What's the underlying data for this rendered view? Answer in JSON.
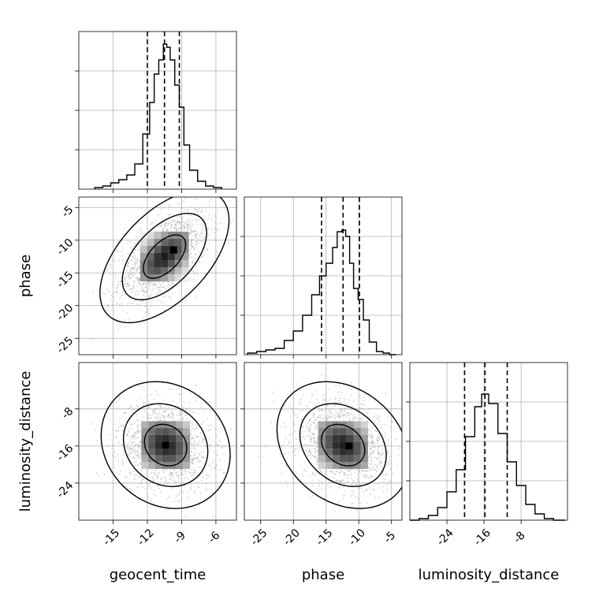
{
  "chart_data": {
    "type": "corner",
    "parameters": [
      "geocent_time",
      "phase",
      "luminosity_distance"
    ],
    "ranges": {
      "geocent_time": [
        -18,
        -4.2
      ],
      "phase": [
        -27.5,
        -3.4
      ],
      "luminosity_distance": [
        -32,
        2
      ]
    },
    "ticks": {
      "geocent_time": [
        -15,
        -12,
        -9,
        -6
      ],
      "phase": [
        -25,
        -20,
        -15,
        -10,
        -5
      ],
      "luminosity_distance": [
        -24,
        -16,
        -8
      ]
    },
    "xlabels": [
      "geocent_time",
      "phase",
      "luminosity_distance"
    ],
    "ylabels": [
      "",
      "phase",
      "luminosity_distance"
    ],
    "grid": true,
    "histograms": [
      {
        "param": "geocent_time",
        "edges": [
          -16.6,
          -15.9,
          -15.2,
          -14.5,
          -13.8,
          -13.1,
          -12.4,
          -11.8,
          -11.4,
          -11.0,
          -10.6,
          -10.3,
          -10.0,
          -9.6,
          -9.2,
          -8.8,
          -8.3,
          -7.6,
          -6.9,
          -6.2,
          -5.5
        ],
        "counts": [
          0.01,
          0.02,
          0.04,
          0.06,
          0.09,
          0.16,
          0.35,
          0.55,
          0.73,
          0.82,
          0.92,
          0.9,
          0.82,
          0.66,
          0.52,
          0.28,
          0.12,
          0.05,
          0.02,
          0.01
        ],
        "quantiles": [
          -12.0,
          -10.5,
          -9.2
        ]
      },
      {
        "param": "phase",
        "edges": [
          -27.0,
          -25.6,
          -24.2,
          -22.8,
          -21.4,
          -20.0,
          -18.6,
          -17.2,
          -16.0,
          -15.0,
          -14.0,
          -13.3,
          -12.6,
          -12.0,
          -11.4,
          -10.8,
          -10.1,
          -9.3,
          -8.4,
          -7.3,
          -6.3,
          -5.3,
          -4.3
        ],
        "counts": [
          0.01,
          0.02,
          0.03,
          0.04,
          0.09,
          0.15,
          0.25,
          0.38,
          0.5,
          0.58,
          0.68,
          0.78,
          0.79,
          0.75,
          0.58,
          0.42,
          0.35,
          0.22,
          0.08,
          0.02,
          0.01,
          0.0
        ],
        "quantiles": [
          -15.7,
          -12.4,
          -9.9
        ]
      },
      {
        "param": "luminosity_distance",
        "edges": [
          -32.0,
          -30.0,
          -28.0,
          -26.0,
          -24.0,
          -22.0,
          -20.0,
          -18.0,
          -16.5,
          -15.0,
          -13.0,
          -11.0,
          -9.0,
          -7.0,
          -5.0,
          -3.0,
          -1.0,
          1.5
        ],
        "counts": [
          0.0,
          0.01,
          0.03,
          0.08,
          0.18,
          0.32,
          0.53,
          0.72,
          0.8,
          0.74,
          0.55,
          0.37,
          0.22,
          0.1,
          0.04,
          0.01,
          0.0
        ],
        "quantiles": [
          -20.2,
          -15.8,
          -11.0
        ]
      }
    ],
    "pairs": [
      {
        "x": "geocent_time",
        "y": "phase",
        "center": [
          -10.5,
          -12.5
        ],
        "sigma": [
          1.9,
          3.4
        ],
        "rho": 0.55,
        "peak": [
          -9.7,
          -11.5
        ]
      },
      {
        "x": "geocent_time",
        "y": "luminosity_distance",
        "center": [
          -10.4,
          -15.8
        ],
        "sigma": [
          1.9,
          4.6
        ],
        "rho": -0.15,
        "peak": [
          -10.4,
          -15.8
        ]
      },
      {
        "x": "phase",
        "y": "luminosity_distance",
        "center": [
          -12.4,
          -15.8
        ],
        "sigma": [
          3.4,
          4.6
        ],
        "rho": -0.25,
        "peak": [
          -11.5,
          -16.0
        ]
      }
    ],
    "contour_levels": [
      0.39,
      0.86,
      0.99
    ]
  }
}
